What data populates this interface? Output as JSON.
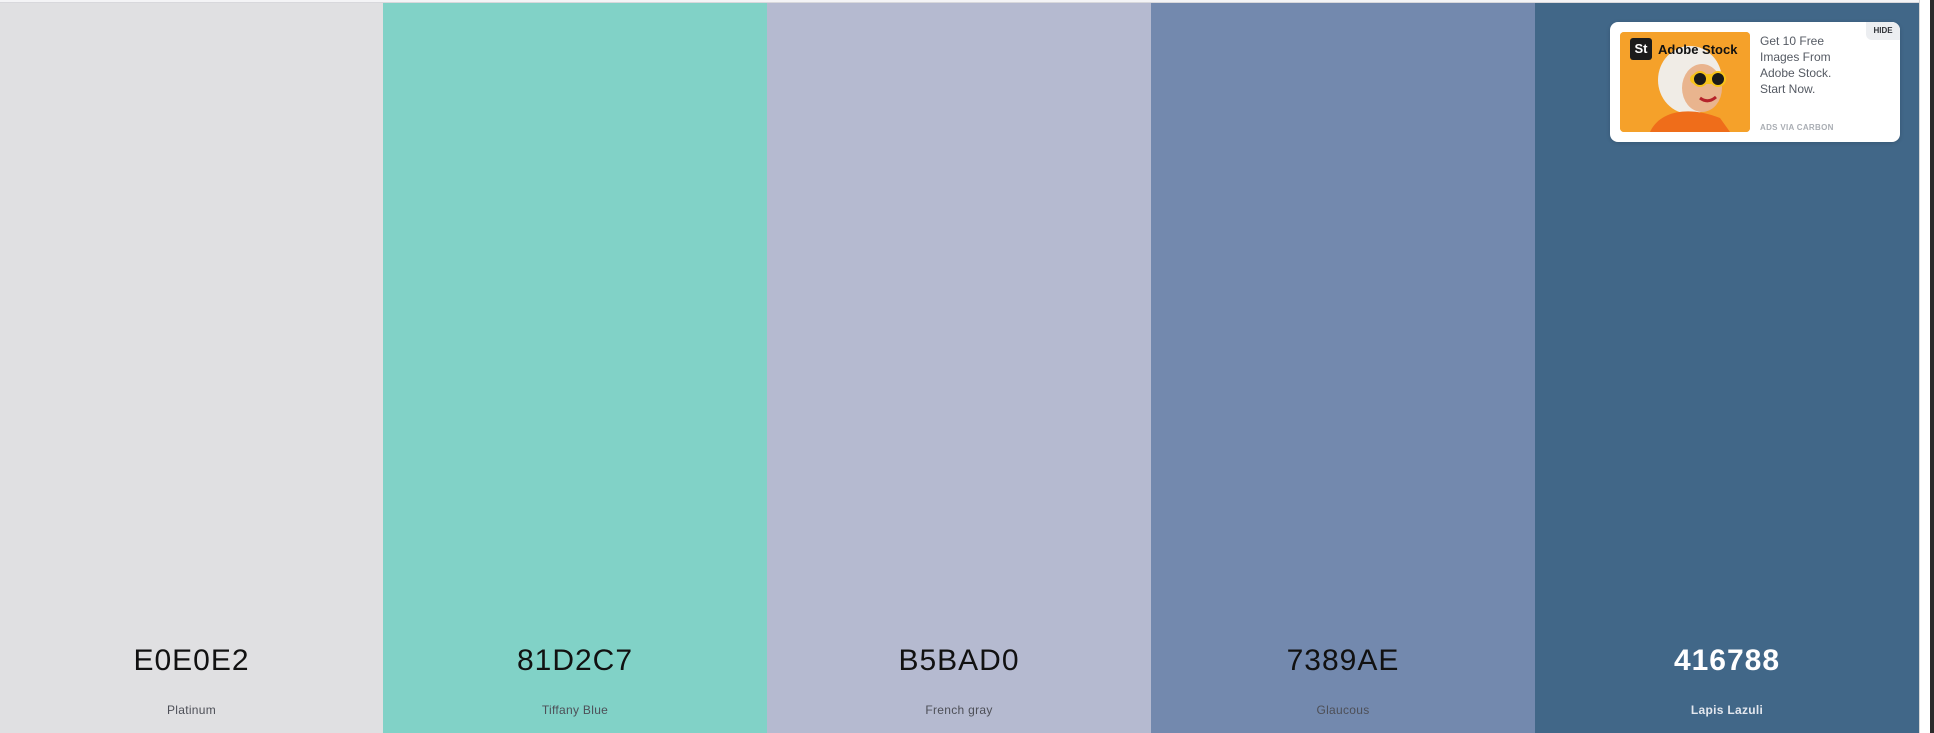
{
  "palette": [
    {
      "hex": "E0E0E2",
      "name": "Platinum",
      "color": "#E0E0E2",
      "text_theme": "dark"
    },
    {
      "hex": "81D2C7",
      "name": "Tiffany Blue",
      "color": "#81D2C7",
      "text_theme": "dark"
    },
    {
      "hex": "B5BAD0",
      "name": "French gray",
      "color": "#B5BAD0",
      "text_theme": "dark"
    },
    {
      "hex": "7389AE",
      "name": "Glaucous",
      "color": "#7389AE",
      "text_theme": "dark"
    },
    {
      "hex": "416788",
      "name": "Lapis Lazuli",
      "color": "#416788",
      "text_theme": "light"
    }
  ],
  "ad": {
    "brand_badge": "St",
    "brand_name": "Adobe Stock",
    "text": "Get 10 Free Images From Adobe Stock. Start Now.",
    "via": "ADS VIA CARBON",
    "hide_label": "HIDE"
  }
}
